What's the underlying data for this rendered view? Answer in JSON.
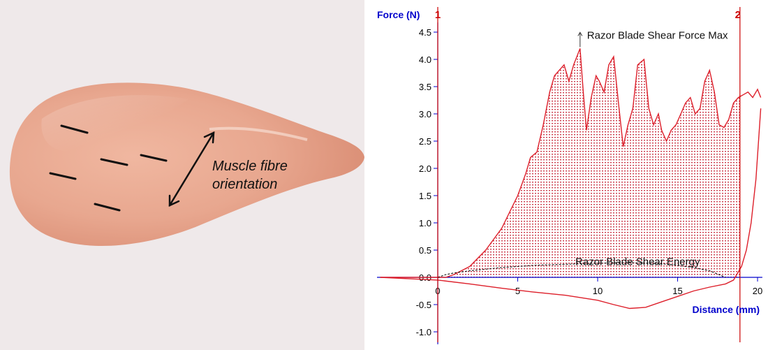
{
  "photo": {
    "subject": "chicken-breast-fillet",
    "annotation_line1": "Muscle fibre",
    "annotation_line2": "orientation",
    "colors": {
      "background": "#efe9ea",
      "meat": "#e9a992",
      "marks": "#111111"
    }
  },
  "chart_data": {
    "type": "area",
    "ylabel": "Force (N)",
    "xlabel": "Distance (mm)",
    "xlim": [
      0,
      20.3
    ],
    "ylim": [
      -1.1,
      4.6
    ],
    "x_ticks": [
      0,
      5,
      10,
      15,
      20
    ],
    "y_ticks": [
      4.5,
      4.0,
      3.5,
      3.0,
      2.5,
      2.0,
      1.5,
      1.0,
      0.5,
      0.0,
      -0.5,
      -1.0
    ],
    "y_tick_labels": [
      "4.5",
      "4.0",
      "3.5",
      "3.0",
      "2.5",
      "2.0",
      "1.5",
      "1.0",
      "0.5",
      "0.0",
      "-0.5",
      "-1.0"
    ],
    "markers": [
      {
        "label": "1",
        "x": 0
      },
      {
        "label": "2",
        "x": 18.9
      }
    ],
    "annotations": [
      {
        "text": "Razor Blade Shear Force Max",
        "x": 8.9,
        "y": 4.2
      },
      {
        "text": "Razor Blade Shear Energy",
        "x": 12.5,
        "y": 0.25
      }
    ],
    "series": [
      {
        "x": [
          -3.6,
          0.5,
          1,
          2,
          3,
          4,
          5,
          5.5,
          5.8,
          6.2,
          6.6,
          7,
          7.3,
          7.6,
          7.9,
          8.2,
          8.5,
          8.9,
          9.1,
          9.3,
          9.6,
          9.9,
          10.1,
          10.4,
          10.7,
          11.0,
          11.3,
          11.6,
          11.9,
          12.2,
          12.5,
          12.9,
          13.2,
          13.5,
          13.8,
          14.0,
          14.3,
          14.6,
          14.9,
          15.2,
          15.5,
          15.8,
          16.1,
          16.4,
          16.7,
          17.0,
          17.3,
          17.6,
          17.9,
          18.2,
          18.5,
          18.8,
          19.1,
          19.4,
          19.7,
          20.0,
          20.2
        ],
        "y": [
          0.0,
          0.0,
          0.05,
          0.2,
          0.5,
          0.9,
          1.5,
          1.9,
          2.2,
          2.3,
          2.8,
          3.4,
          3.7,
          3.8,
          3.9,
          3.6,
          3.9,
          4.2,
          3.4,
          2.7,
          3.3,
          3.7,
          3.6,
          3.4,
          3.9,
          4.05,
          3.2,
          2.4,
          2.8,
          3.1,
          3.9,
          4.0,
          3.1,
          2.8,
          3.0,
          2.7,
          2.5,
          2.7,
          2.8,
          3.0,
          3.2,
          3.3,
          3.0,
          3.1,
          3.6,
          3.8,
          3.4,
          2.8,
          2.75,
          2.9,
          3.2,
          3.3,
          3.35,
          3.4,
          3.3,
          3.45,
          3.3
        ]
      },
      {
        "x": [
          -3.6,
          0,
          2,
          4,
          6,
          8,
          10,
          11,
          12,
          13,
          14,
          15,
          16,
          17,
          18,
          18.5,
          19,
          19.3,
          19.6,
          19.9,
          20.2
        ],
        "y": [
          0.0,
          -0.05,
          -0.12,
          -0.2,
          -0.27,
          -0.33,
          -0.42,
          -0.5,
          -0.57,
          -0.55,
          -0.45,
          -0.35,
          -0.25,
          -0.18,
          -0.12,
          -0.05,
          0.2,
          0.5,
          1.0,
          1.8,
          3.1
        ]
      },
      {
        "x": [
          0,
          0.5,
          1,
          2,
          3,
          4,
          5,
          6,
          8,
          10,
          12,
          14,
          15,
          16,
          17,
          17.5,
          18
        ],
        "y": [
          0.0,
          0.05,
          0.08,
          0.12,
          0.15,
          0.18,
          0.2,
          0.22,
          0.24,
          0.26,
          0.27,
          0.25,
          0.22,
          0.18,
          0.12,
          0.06,
          0.0
        ]
      }
    ],
    "colors": {
      "force": "#dd1f2a",
      "axis": "#0000cc",
      "marker": "#cc0000",
      "hatch": "#c83040",
      "energy": "#111111"
    }
  }
}
